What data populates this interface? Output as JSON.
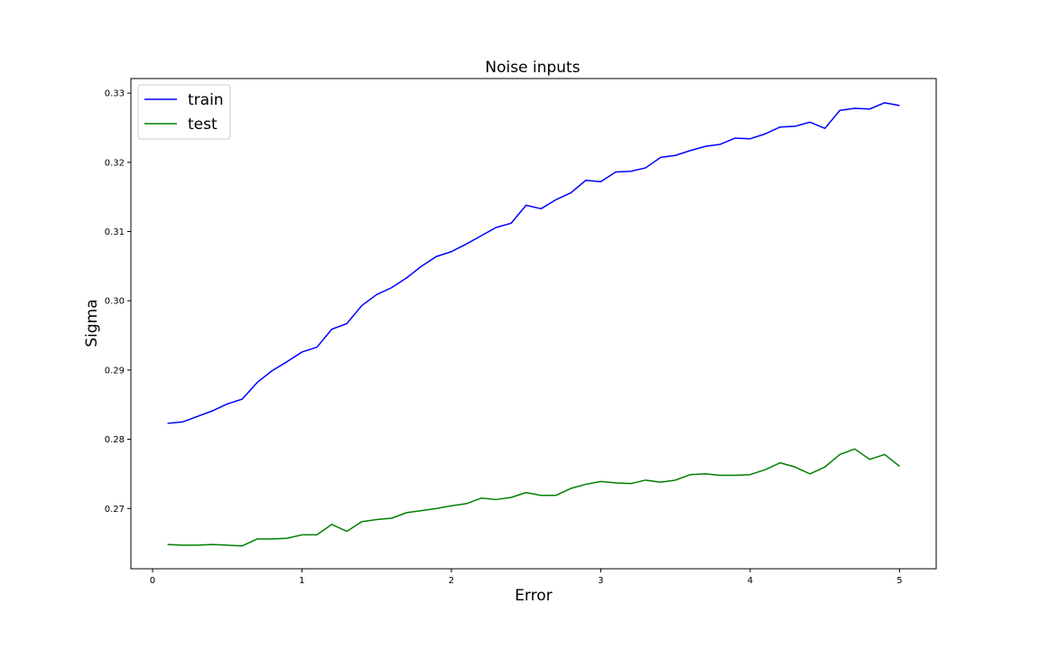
{
  "chart_data": {
    "type": "line",
    "title": "Noise inputs",
    "xlabel": "Error",
    "ylabel": "Sigma",
    "xlim": [
      -0.145,
      5.245
    ],
    "ylim": [
      0.2613,
      0.3321
    ],
    "xticks": [
      0,
      1,
      2,
      3,
      4,
      5
    ],
    "xtick_labels": [
      "0",
      "1",
      "2",
      "3",
      "4",
      "5"
    ],
    "yticks": [
      0.27,
      0.28,
      0.29,
      0.3,
      0.31,
      0.32,
      0.33
    ],
    "ytick_labels": [
      "0.27",
      "0.28",
      "0.29",
      "0.30",
      "0.31",
      "0.32",
      "0.33"
    ],
    "grid": false,
    "legend_position": "top-left",
    "x": [
      0.1,
      0.2,
      0.3,
      0.4,
      0.5,
      0.6,
      0.7,
      0.8,
      0.9,
      1.0,
      1.1,
      1.2,
      1.3,
      1.4,
      1.5,
      1.6,
      1.7,
      1.8,
      1.9,
      2.0,
      2.1,
      2.2,
      2.3,
      2.4,
      2.5,
      2.6,
      2.7,
      2.8,
      2.9,
      3.0,
      3.1,
      3.2,
      3.3,
      3.4,
      3.5,
      3.6,
      3.7,
      3.8,
      3.9,
      4.0,
      4.1,
      4.2,
      4.3,
      4.4,
      4.5,
      4.6,
      4.7,
      4.8,
      4.9,
      5.0
    ],
    "series": [
      {
        "name": "train",
        "color": "#0000ff",
        "values": [
          0.2823,
          0.2825,
          0.2833,
          0.2841,
          0.2851,
          0.2858,
          0.2882,
          0.2899,
          0.2912,
          0.2926,
          0.2933,
          0.2959,
          0.2967,
          0.2993,
          0.3009,
          0.3019,
          0.3033,
          0.305,
          0.3064,
          0.3071,
          0.3082,
          0.3094,
          0.3106,
          0.3112,
          0.3138,
          0.3133,
          0.3146,
          0.3156,
          0.3174,
          0.3172,
          0.3186,
          0.3187,
          0.3192,
          0.3207,
          0.321,
          0.3217,
          0.3223,
          0.3226,
          0.3235,
          0.3234,
          0.3241,
          0.3251,
          0.3252,
          0.3258,
          0.3249,
          0.3275,
          0.3278,
          0.3277,
          0.3286,
          0.3282
        ]
      },
      {
        "name": "test",
        "color": "#008000",
        "values": [
          0.2648,
          0.2647,
          0.2647,
          0.2648,
          0.2647,
          0.2646,
          0.2656,
          0.2656,
          0.2657,
          0.2662,
          0.2662,
          0.2677,
          0.2667,
          0.2681,
          0.2684,
          0.2686,
          0.2694,
          0.2697,
          0.27,
          0.2704,
          0.2707,
          0.2715,
          0.2713,
          0.2716,
          0.2723,
          0.2719,
          0.2719,
          0.2729,
          0.2735,
          0.2739,
          0.2737,
          0.2736,
          0.2741,
          0.2738,
          0.2741,
          0.2749,
          0.275,
          0.2748,
          0.2748,
          0.2749,
          0.2756,
          0.2766,
          0.276,
          0.275,
          0.276,
          0.2778,
          0.2786,
          0.2771,
          0.2778,
          0.2761
        ]
      }
    ]
  }
}
